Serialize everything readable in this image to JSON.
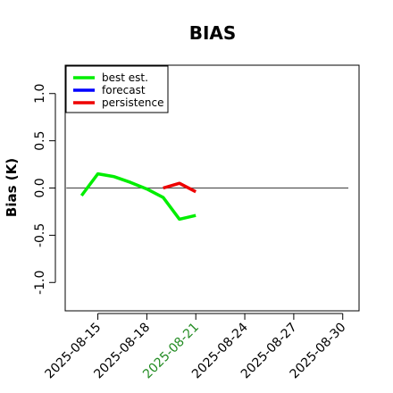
{
  "chart_data": {
    "type": "line",
    "title": "BIAS",
    "ylabel": "Bias (K)",
    "xlabel": "",
    "ylim": [
      -1.3,
      1.3
    ],
    "y_ticks": [
      -1.0,
      -0.5,
      0.0,
      0.5,
      1.0
    ],
    "y_tick_labels": [
      "-1.0",
      "-0.5",
      "0.0",
      "0.5",
      "1.0"
    ],
    "x_range": [
      "2025-08-13",
      "2025-08-31"
    ],
    "x_ticks": [
      {
        "date": "2025-08-15",
        "label": "2025-08-15",
        "color": "#000000"
      },
      {
        "date": "2025-08-18",
        "label": "2025-08-18",
        "color": "#000000"
      },
      {
        "date": "2025-08-21",
        "label": "2025-08-21",
        "color": "#228B22"
      },
      {
        "date": "2025-08-24",
        "label": "2025-08-24",
        "color": "#000000"
      },
      {
        "date": "2025-08-27",
        "label": "2025-08-27",
        "color": "#000000"
      },
      {
        "date": "2025-08-30",
        "label": "2025-08-30",
        "color": "#000000"
      }
    ],
    "reference_line": 0.0,
    "legend_position": "top-left",
    "series": [
      {
        "name": "best est.",
        "color": "#00ee00",
        "points": [
          {
            "x": "2025-08-14",
            "y": -0.08
          },
          {
            "x": "2025-08-15",
            "y": 0.15
          },
          {
            "x": "2025-08-16",
            "y": 0.12
          },
          {
            "x": "2025-08-17",
            "y": 0.06
          },
          {
            "x": "2025-08-18",
            "y": -0.01
          },
          {
            "x": "2025-08-19",
            "y": -0.1
          },
          {
            "x": "2025-08-20",
            "y": -0.33
          },
          {
            "x": "2025-08-21",
            "y": -0.29
          }
        ]
      },
      {
        "name": "forecast",
        "color": "#0000ff",
        "points": []
      },
      {
        "name": "persistence",
        "color": "#ee0000",
        "points": [
          {
            "x": "2025-08-19",
            "y": 0.0
          },
          {
            "x": "2025-08-20",
            "y": 0.05
          },
          {
            "x": "2025-08-21",
            "y": -0.04
          }
        ]
      }
    ]
  }
}
